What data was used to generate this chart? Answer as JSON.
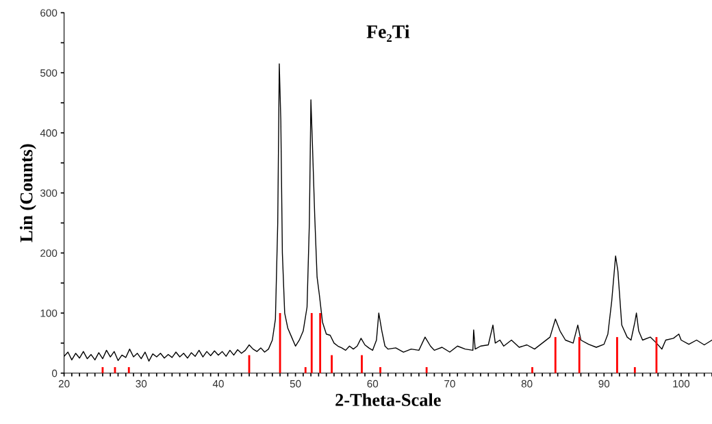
{
  "chart_data": {
    "type": "line",
    "title": "Fe₂Ti",
    "xlabel": "2-Theta-Scale",
    "ylabel": "Lin (Counts)",
    "xlim": [
      20,
      104
    ],
    "ylim": [
      0,
      600
    ],
    "xticks": [
      20,
      {
        "value": 21,
        "label": null
      },
      {
        "value": 22,
        "label": null
      },
      {
        "value": 23,
        "label": null
      },
      {
        "value": 24,
        "label": null
      },
      {
        "value": 25,
        "label": null
      },
      {
        "value": 26,
        "label": null
      },
      {
        "value": 27,
        "label": null
      },
      {
        "value": 28,
        "label": null
      },
      {
        "value": 29,
        "label": null
      },
      30,
      {
        "value": 31,
        "label": null
      },
      {
        "value": 32,
        "label": null
      },
      {
        "value": 33,
        "label": null
      },
      {
        "value": 34,
        "label": null
      },
      {
        "value": 35,
        "label": null
      },
      {
        "value": 36,
        "label": null
      },
      {
        "value": 37,
        "label": null
      },
      {
        "value": 38,
        "label": null
      },
      {
        "value": 39,
        "label": null
      },
      40,
      {
        "value": 41,
        "label": null
      },
      {
        "value": 42,
        "label": null
      },
      {
        "value": 43,
        "label": null
      },
      {
        "value": 44,
        "label": null
      },
      {
        "value": 45,
        "label": null
      },
      {
        "value": 46,
        "label": null
      },
      {
        "value": 47,
        "label": null
      },
      {
        "value": 48,
        "label": null
      },
      {
        "value": 49,
        "label": null
      },
      50,
      {
        "value": 51,
        "label": null
      },
      {
        "value": 52,
        "label": null
      },
      {
        "value": 53,
        "label": null
      },
      {
        "value": 54,
        "label": null
      },
      {
        "value": 55,
        "label": null
      },
      {
        "value": 56,
        "label": null
      },
      {
        "value": 57,
        "label": null
      },
      {
        "value": 58,
        "label": null
      },
      {
        "value": 59,
        "label": null
      },
      60,
      {
        "value": 61,
        "label": null
      },
      {
        "value": 62,
        "label": null
      },
      {
        "value": 63,
        "label": null
      },
      {
        "value": 64,
        "label": null
      },
      {
        "value": 65,
        "label": null
      },
      {
        "value": 66,
        "label": null
      },
      {
        "value": 67,
        "label": null
      },
      {
        "value": 68,
        "label": null
      },
      {
        "value": 69,
        "label": null
      },
      70,
      {
        "value": 71,
        "label": null
      },
      {
        "value": 72,
        "label": null
      },
      {
        "value": 73,
        "label": null
      },
      {
        "value": 74,
        "label": null
      },
      {
        "value": 75,
        "label": null
      },
      {
        "value": 76,
        "label": null
      },
      {
        "value": 77,
        "label": null
      },
      {
        "value": 78,
        "label": null
      },
      {
        "value": 79,
        "label": null
      },
      80,
      {
        "value": 81,
        "label": null
      },
      {
        "value": 82,
        "label": null
      },
      {
        "value": 83,
        "label": null
      },
      {
        "value": 84,
        "label": null
      },
      {
        "value": 85,
        "label": null
      },
      {
        "value": 86,
        "label": null
      },
      {
        "value": 87,
        "label": null
      },
      {
        "value": 88,
        "label": null
      },
      {
        "value": 89,
        "label": null
      },
      90,
      {
        "value": 91,
        "label": null
      },
      {
        "value": 92,
        "label": null
      },
      {
        "value": 93,
        "label": null
      },
      {
        "value": 94,
        "label": null
      },
      {
        "value": 95,
        "label": null
      },
      {
        "value": 96,
        "label": null
      },
      {
        "value": 97,
        "label": null
      },
      {
        "value": 98,
        "label": null
      },
      {
        "value": 99,
        "label": null
      },
      100,
      {
        "value": 101,
        "label": null
      },
      {
        "value": 102,
        "label": null
      },
      {
        "value": 103,
        "label": null
      },
      {
        "value": 104,
        "label": null
      }
    ],
    "yticks": [
      0,
      {
        "value": 50,
        "label": null
      },
      100,
      {
        "value": 150,
        "label": null
      },
      200,
      {
        "value": 250,
        "label": null
      },
      300,
      {
        "value": 350,
        "label": null
      },
      400,
      {
        "value": 450,
        "label": null
      },
      500,
      {
        "value": 550,
        "label": null
      },
      600
    ],
    "grid": false,
    "legend": false,
    "series": [
      {
        "color": "#000000",
        "x": [
          20,
          20.5,
          21,
          21.5,
          22,
          22.5,
          23,
          23.5,
          24,
          24.5,
          25,
          25.5,
          26,
          26.5,
          27,
          27.5,
          28,
          28.5,
          29,
          29.5,
          30,
          30.5,
          31,
          31.5,
          32,
          32.5,
          33,
          33.5,
          34,
          34.5,
          35,
          35.5,
          36,
          36.5,
          37,
          37.5,
          38,
          38.5,
          39,
          39.5,
          40,
          40.5,
          41,
          41.5,
          42,
          42.5,
          43,
          43.5,
          44,
          44.5,
          45,
          45.5,
          46,
          46.5,
          47,
          47.4,
          47.7,
          47.9,
          48.1,
          48.3,
          48.6,
          49,
          49.5,
          50,
          50.5,
          51,
          51.5,
          51.8,
          52,
          52.2,
          52.5,
          52.8,
          53.1,
          53.5,
          54,
          54.5,
          55,
          55.5,
          56,
          56.5,
          57,
          57.5,
          58,
          58.5,
          59,
          59.5,
          60,
          60.5,
          60.8,
          61.2,
          61.6,
          62,
          63,
          64,
          65,
          66,
          66.8,
          67.5,
          68,
          69,
          70,
          71,
          72,
          73,
          73.1,
          73.3,
          74,
          75,
          75.6,
          75.9,
          76.5,
          77,
          78,
          79,
          80,
          81,
          82,
          83,
          83.7,
          84.3,
          85,
          86,
          86.6,
          87,
          88,
          89,
          90,
          90.5,
          91,
          91.5,
          91.8,
          92.3,
          93,
          93.5,
          94,
          94.2,
          94.5,
          95,
          96,
          96.8,
          97.5,
          98,
          99,
          99.7,
          100,
          101,
          102,
          103,
          104
        ],
        "values": [
          28,
          35,
          22,
          33,
          25,
          36,
          24,
          31,
          22,
          34,
          24,
          38,
          27,
          36,
          21,
          30,
          26,
          40,
          27,
          33,
          24,
          35,
          20,
          32,
          27,
          33,
          25,
          31,
          26,
          35,
          27,
          33,
          25,
          34,
          28,
          38,
          27,
          36,
          29,
          37,
          30,
          36,
          28,
          38,
          30,
          39,
          33,
          38,
          47,
          40,
          36,
          42,
          35,
          40,
          55,
          90,
          250,
          515,
          420,
          200,
          100,
          75,
          60,
          45,
          55,
          70,
          110,
          250,
          455,
          380,
          260,
          160,
          130,
          85,
          65,
          63,
          50,
          45,
          42,
          38,
          45,
          40,
          45,
          58,
          47,
          42,
          38,
          55,
          100,
          70,
          45,
          40,
          42,
          35,
          40,
          38,
          60,
          45,
          38,
          43,
          35,
          45,
          40,
          38,
          72,
          40,
          45,
          47,
          80,
          50,
          55,
          45,
          55,
          43,
          47,
          40,
          50,
          60,
          90,
          70,
          55,
          50,
          80,
          55,
          48,
          43,
          48,
          65,
          120,
          195,
          170,
          80,
          60,
          55,
          85,
          100,
          70,
          55,
          60,
          50,
          40,
          55,
          58,
          65,
          55,
          48,
          55,
          47,
          55
        ]
      },
      {
        "type": "bar",
        "color": "#ff0000",
        "x": [
          25.0,
          26.6,
          28.4,
          44.0,
          48.0,
          51.3,
          52.1,
          53.2,
          54.7,
          58.6,
          61.0,
          67.0,
          80.7,
          83.7,
          86.8,
          91.7,
          94.0,
          96.8
        ],
        "values": [
          10,
          10,
          10,
          30,
          100,
          10,
          100,
          100,
          30,
          30,
          10,
          10,
          10,
          60,
          60,
          60,
          10,
          60
        ]
      }
    ]
  }
}
